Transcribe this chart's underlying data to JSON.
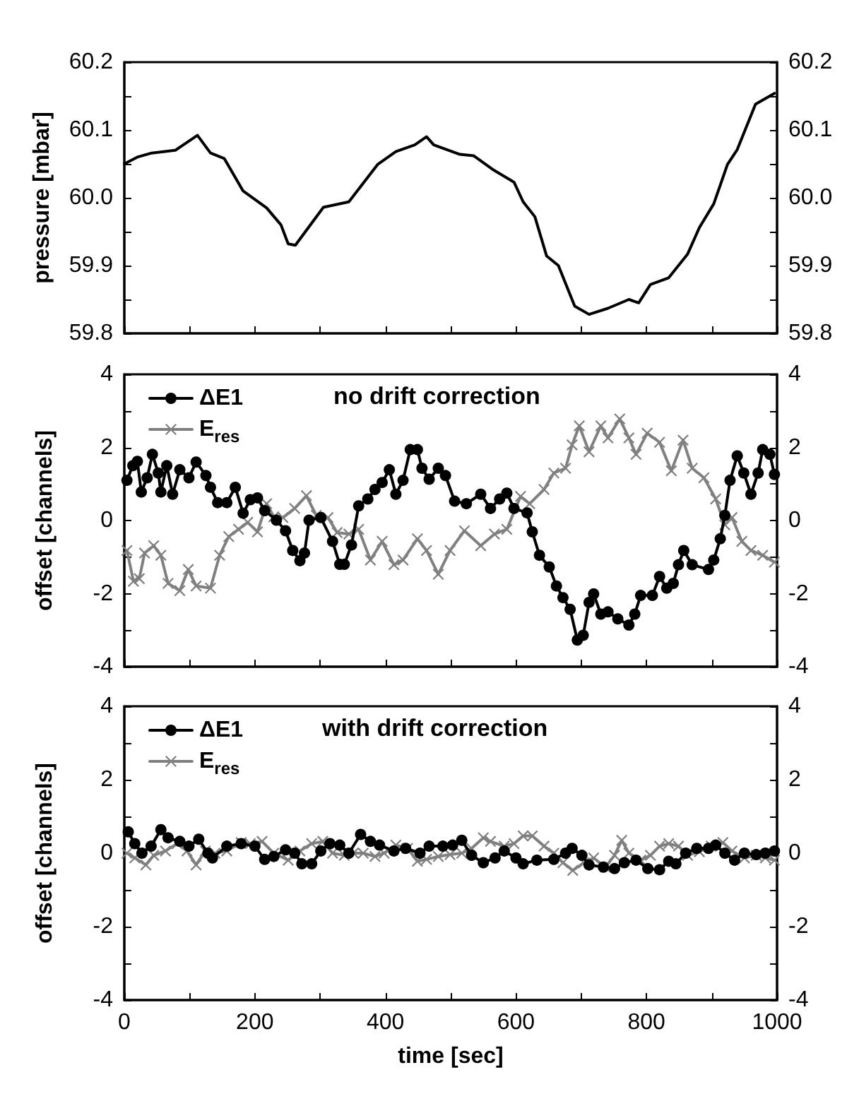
{
  "chart_data": [
    {
      "type": "line",
      "ylabel": "pressure [mbar]",
      "xlim": [
        0,
        1000
      ],
      "xticks": [
        0,
        {
          "value": 100,
          "label": null
        },
        {
          "value": 200,
          "label": null
        },
        {
          "value": 300,
          "label": null
        },
        {
          "value": 400,
          "label": null
        },
        {
          "value": 500,
          "label": null
        },
        {
          "value": 600,
          "label": null
        },
        {
          "value": 700,
          "label": null
        },
        {
          "value": 800,
          "label": null
        },
        {
          "value": 900,
          "label": null
        },
        {
          "value": 1000,
          "label": null
        }
      ],
      "ylim": [
        59.8,
        60.2
      ],
      "yticks": [
        59.8,
        {
          "value": 59.85,
          "label": null
        },
        59.9,
        {
          "value": 59.95,
          "label": null
        },
        {
          "value": 60,
          "label": "60.0"
        },
        {
          "value": 60.05,
          "label": null
        },
        60.1,
        {
          "value": 60.15,
          "label": null
        },
        60.2
      ],
      "y2lim": [
        59.8,
        60.2
      ],
      "y2ticks": [
        59.8,
        {
          "value": 59.85,
          "label": null
        },
        59.9,
        {
          "value": 59.95,
          "label": null
        },
        {
          "value": 60,
          "label": "60.0"
        },
        {
          "value": 60.05,
          "label": null
        },
        60.1,
        {
          "value": 60.15,
          "label": null
        },
        60.2
      ],
      "tick_labels": "y",
      "grid": false,
      "legend": false,
      "line_style": "solid",
      "marker": "none",
      "series": [
        {
          "color": "#000000",
          "x": [
            0,
            20,
            42,
            78,
            112,
            132,
            153,
            182,
            218,
            240,
            251,
            262,
            305,
            344,
            388,
            416,
            445,
            463,
            474,
            514,
            535,
            564,
            597,
            611,
            629,
            647,
            665,
            690,
            712,
            741,
            773,
            788,
            806,
            834,
            863,
            881,
            903,
            924,
            939,
            967,
            996
          ],
          "values": [
            60.05,
            60.06,
            60.066,
            60.07,
            60.092,
            60.066,
            60.058,
            60.01,
            59.985,
            59.96,
            59.932,
            59.93,
            59.986,
            59.994,
            60.049,
            60.068,
            60.078,
            60.09,
            60.078,
            60.064,
            60.062,
            60.042,
            60.023,
            59.994,
            59.972,
            59.914,
            59.9,
            59.84,
            59.828,
            59.837,
            59.85,
            59.845,
            59.872,
            59.882,
            59.917,
            59.956,
            59.991,
            60.049,
            60.071,
            60.138,
            60.154
          ]
        }
      ]
    },
    {
      "type": "line",
      "title": "no drift correction",
      "ylabel": "offset [channels]",
      "xlim": [
        0,
        1000
      ],
      "xticks": [
        0,
        {
          "value": 100,
          "label": null
        },
        {
          "value": 200,
          "label": null
        },
        {
          "value": 300,
          "label": null
        },
        {
          "value": 400,
          "label": null
        },
        {
          "value": 500,
          "label": null
        },
        {
          "value": 600,
          "label": null
        },
        {
          "value": 700,
          "label": null
        },
        {
          "value": 800,
          "label": null
        },
        {
          "value": 900,
          "label": null
        },
        {
          "value": 1000,
          "label": null
        }
      ],
      "ylim": [
        -4,
        4
      ],
      "yticks": [
        -4,
        {
          "value": -3,
          "label": null
        },
        -2,
        {
          "value": -1,
          "label": null
        },
        0,
        {
          "value": 1,
          "label": null
        },
        2,
        {
          "value": 3,
          "label": null
        },
        4
      ],
      "y2lim": [
        -4,
        4
      ],
      "y2ticks": [
        -4,
        {
          "value": -3,
          "label": null
        },
        -2,
        {
          "value": -1,
          "label": null
        },
        0,
        {
          "value": 1,
          "label": null
        },
        2,
        {
          "value": 3,
          "label": null
        },
        4
      ],
      "tick_labels": "y",
      "grid": false,
      "legend": "top left",
      "line_style": "solid",
      "series": [
        {
          "name": "ΔE1",
          "color": "#000000",
          "marker": "circle",
          "x": [
            4,
            13,
            20,
            26,
            35,
            43,
            52,
            56,
            65,
            74,
            85,
            99,
            110,
            125,
            132,
            143,
            157,
            170,
            182,
            193,
            204,
            215,
            233,
            247,
            258,
            269,
            276,
            283,
            301,
            319,
            330,
            337,
            348,
            359,
            373,
            384,
            395,
            406,
            416,
            427,
            438,
            449,
            456,
            467,
            481,
            492,
            506,
            524,
            546,
            561,
            575,
            586,
            597,
            617,
            625,
            636,
            651,
            662,
            672,
            683,
            694,
            703,
            712,
            719,
            730,
            741,
            756,
            773,
            782,
            791,
            809,
            820,
            831,
            841,
            849,
            857,
            870,
            895,
            903,
            913,
            920,
            928,
            939,
            949,
            960,
            971,
            978,
            989,
            996
          ],
          "values": [
            1.1,
            1.5,
            1.62,
            0.78,
            1.17,
            1.81,
            1.3,
            0.78,
            1.5,
            0.72,
            1.39,
            1.17,
            1.6,
            1.23,
            0.91,
            0.49,
            0.49,
            0.91,
            0.2,
            0.57,
            0.62,
            0.27,
            0.01,
            -0.28,
            -0.82,
            -1.1,
            -0.89,
            0.01,
            0.08,
            -0.57,
            -1.2,
            -1.2,
            -0.67,
            0.4,
            0.59,
            0.85,
            1.04,
            1.39,
            0.72,
            1.1,
            1.94,
            1.94,
            1.43,
            1.13,
            1.43,
            1.23,
            0.53,
            0.46,
            0.72,
            0.33,
            0.59,
            0.75,
            0.33,
            0.21,
            -0.31,
            -0.95,
            -1.27,
            -1.79,
            -2.11,
            -2.43,
            -3.27,
            -3.14,
            -2.24,
            -2.01,
            -2.56,
            -2.5,
            -2.69,
            -2.86,
            -2.56,
            -2.05,
            -2.05,
            -1.53,
            -1.85,
            -1.72,
            -1.21,
            -0.82,
            -1.21,
            -1.34,
            -1.08,
            -0.5,
            0.14,
            1.1,
            1.77,
            1.3,
            0.72,
            1.3,
            1.94,
            1.81,
            1.26
          ]
        },
        {
          "name": "E$_{res}$",
          "color": "#808080",
          "marker": "cross",
          "x": [
            4,
            14,
            23,
            31,
            45,
            56,
            67,
            85,
            98,
            110,
            132,
            146,
            160,
            175,
            189,
            204,
            218,
            229,
            243,
            261,
            279,
            294,
            312,
            326,
            344,
            359,
            377,
            395,
            413,
            427,
            449,
            463,
            481,
            499,
            521,
            546,
            567,
            586,
            607,
            621,
            643,
            658,
            676,
            686,
            697,
            712,
            730,
            741,
            759,
            773,
            784,
            801,
            820,
            838,
            856,
            870,
            888,
            906,
            920,
            931,
            946,
            960,
            978,
            996
          ],
          "values": [
            -0.82,
            -1.66,
            -1.59,
            -0.89,
            -0.69,
            -0.95,
            -1.72,
            -1.92,
            -1.34,
            -1.79,
            -1.85,
            -0.95,
            -0.44,
            -0.24,
            -0.05,
            -0.31,
            0.46,
            0.1,
            0.08,
            0.33,
            0.68,
            0.14,
            0.08,
            -0.33,
            -0.37,
            -0.24,
            -1.08,
            -0.57,
            -1.21,
            -1.08,
            -0.5,
            -0.82,
            -1.47,
            -0.82,
            -0.28,
            -0.69,
            -0.37,
            -0.24,
            0.66,
            0.46,
            0.85,
            1.3,
            1.43,
            2.07,
            2.59,
            1.88,
            2.59,
            2.26,
            2.78,
            2.26,
            1.81,
            2.39,
            2.14,
            1.36,
            2.2,
            1.43,
            1.17,
            0.59,
            -0.12,
            0.08,
            -0.57,
            -0.82,
            -0.95,
            -1.14
          ]
        }
      ]
    },
    {
      "type": "line",
      "title": "with drift correction",
      "ylabel": "offset [channels]",
      "xlabel": "time [sec]",
      "xlim": [
        0,
        1000
      ],
      "xticks": [
        0,
        {
          "value": 100,
          "label": null
        },
        200,
        {
          "value": 300,
          "label": null
        },
        400,
        {
          "value": 500,
          "label": null
        },
        600,
        {
          "value": 700,
          "label": null
        },
        800,
        {
          "value": 900,
          "label": null
        },
        1000
      ],
      "ylim": [
        -4,
        4
      ],
      "yticks": [
        -4,
        {
          "value": -3,
          "label": null
        },
        -2,
        {
          "value": -1,
          "label": null
        },
        0,
        {
          "value": 1,
          "label": null
        },
        2,
        {
          "value": 3,
          "label": null
        },
        4
      ],
      "y2lim": [
        -4,
        4
      ],
      "y2ticks": [
        -4,
        {
          "value": -3,
          "label": null
        },
        -2,
        {
          "value": -1,
          "label": null
        },
        0,
        {
          "value": 1,
          "label": null
        },
        2,
        {
          "value": 3,
          "label": null
        },
        4
      ],
      "grid": false,
      "legend": "top left",
      "line_style": "solid",
      "series": [
        {
          "name": "ΔE1",
          "color": "#000000",
          "marker": "circle",
          "x": [
            6,
            16,
            27,
            41,
            56,
            67,
            85,
            99,
            114,
            128,
            135,
            157,
            179,
            200,
            215,
            229,
            247,
            261,
            272,
            287,
            301,
            315,
            330,
            344,
            362,
            377,
            391,
            413,
            431,
            453,
            467,
            488,
            503,
            517,
            532,
            550,
            568,
            582,
            600,
            611,
            632,
            658,
            676,
            686,
            701,
            712,
            734,
            751,
            766,
            784,
            802,
            820,
            834,
            845,
            860,
            877,
            895,
            906,
            920,
            935,
            950,
            968,
            982,
            996
          ],
          "values": [
            0.58,
            0.26,
            0,
            0.19,
            0.64,
            0.42,
            0.32,
            0.19,
            0.38,
            0,
            -0.13,
            0.19,
            0.26,
            0.19,
            -0.17,
            -0.09,
            0.09,
            0,
            -0.29,
            -0.29,
            0.06,
            0.26,
            0.22,
            0,
            0.51,
            0.32,
            0.22,
            0.06,
            0.13,
            0,
            0.19,
            0.19,
            0.22,
            0.35,
            -0.06,
            -0.26,
            -0.13,
            0.06,
            -0.13,
            -0.29,
            -0.19,
            -0.17,
            0,
            0.13,
            -0.06,
            -0.32,
            -0.38,
            -0.42,
            -0.26,
            -0.19,
            -0.42,
            -0.45,
            -0.22,
            -0.29,
            0,
            0.13,
            0.13,
            0.22,
            0,
            -0.19,
            0,
            -0.04,
            0,
            0.06
          ]
        },
        {
          "name": "E$_{res}$",
          "color": "#808080",
          "marker": "cross",
          "x": [
            4,
            16,
            33,
            45,
            63,
            81,
            96,
            110,
            124,
            139,
            157,
            179,
            193,
            211,
            229,
            251,
            269,
            287,
            304,
            319,
            337,
            351,
            366,
            384,
            398,
            416,
            434,
            449,
            463,
            481,
            499,
            517,
            532,
            550,
            561,
            582,
            597,
            611,
            625,
            643,
            658,
            672,
            687,
            704,
            719,
            737,
            751,
            762,
            773,
            791,
            806,
            820,
            834,
            849,
            863,
            881,
            899,
            917,
            931,
            950,
            968,
            982,
            996
          ],
          "values": [
            0,
            -0.13,
            -0.32,
            -0.06,
            0.06,
            0.26,
            0.06,
            -0.32,
            0.06,
            0,
            0.06,
            0.29,
            0.26,
            0.32,
            0,
            -0.19,
            0.06,
            0.26,
            0.32,
            0,
            -0.06,
            0,
            0,
            -0.09,
            0,
            0.22,
            0.13,
            -0.22,
            -0.17,
            -0.09,
            -0.04,
            0,
            0.13,
            0.42,
            0.32,
            0.19,
            0.26,
            0.47,
            0.47,
            0.19,
            0,
            -0.26,
            -0.47,
            -0.26,
            -0.13,
            -0.38,
            -0.06,
            0.35,
            0,
            -0.19,
            -0.06,
            0.19,
            0.26,
            0.19,
            -0.06,
            0.04,
            0.19,
            0.29,
            0.06,
            -0.13,
            -0.06,
            -0.13,
            -0.19
          ]
        }
      ]
    }
  ]
}
